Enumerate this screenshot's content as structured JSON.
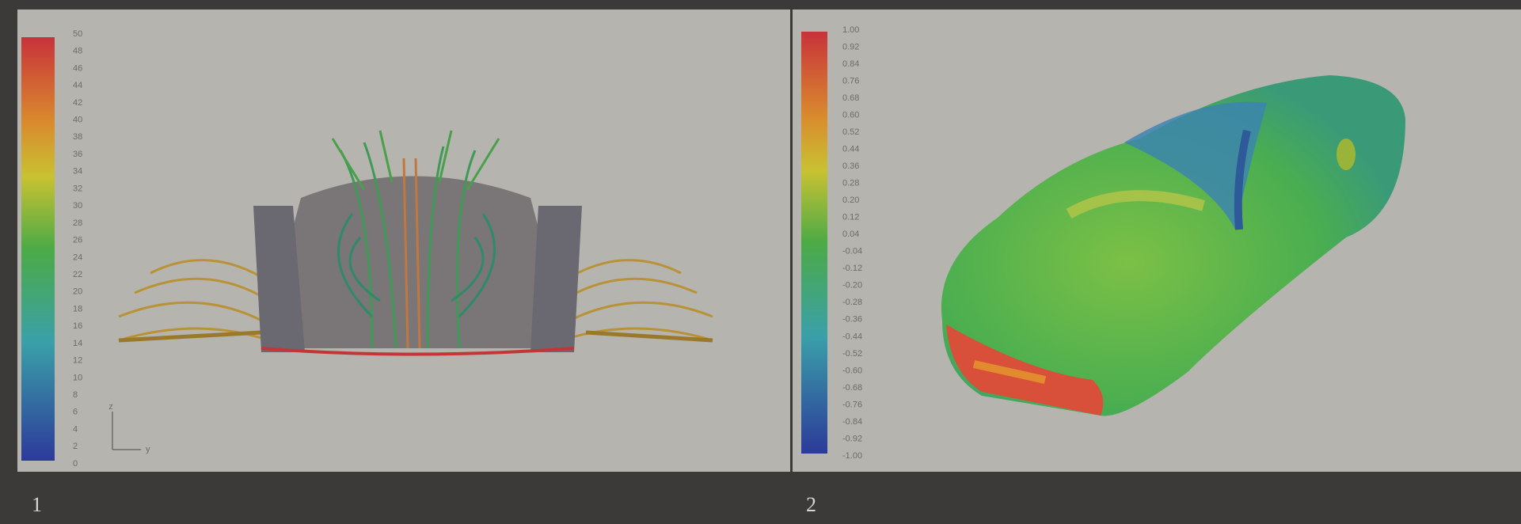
{
  "panels": [
    {
      "caption": "1",
      "colorbar_labels": [
        "50",
        "48",
        "46",
        "44",
        "42",
        "40",
        "38",
        "36",
        "34",
        "32",
        "30",
        "28",
        "26",
        "24",
        "22",
        "20",
        "18",
        "16",
        "14",
        "12",
        "10",
        "8",
        "6",
        "4",
        "2",
        "0"
      ],
      "triad": {
        "up": "z",
        "right": "y"
      }
    },
    {
      "caption": "2",
      "colorbar_labels": [
        "1.00",
        "0.92",
        "0.84",
        "0.76",
        "0.68",
        "0.60",
        "0.52",
        "0.44",
        "0.36",
        "0.28",
        "0.20",
        "0.12",
        "0.04",
        "-0.04",
        "-0.12",
        "-0.20",
        "-0.28",
        "-0.36",
        "-0.44",
        "-0.52",
        "-0.60",
        "-0.68",
        "-0.76",
        "-0.84",
        "-0.92",
        "-1.00"
      ]
    }
  ]
}
